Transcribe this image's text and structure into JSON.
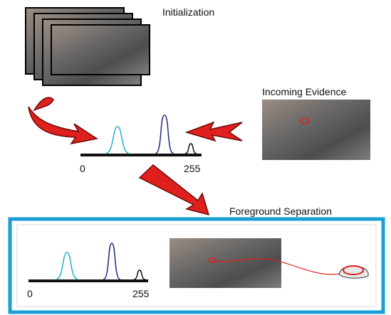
{
  "top": {
    "title": "Initialization"
  },
  "evidence": {
    "title": "Incoming Evidence"
  },
  "model": {
    "axis_min": "0",
    "axis_max": "255"
  },
  "result": {
    "title": "Foreground Separation",
    "axis_min": "0",
    "axis_max": "255"
  }
}
